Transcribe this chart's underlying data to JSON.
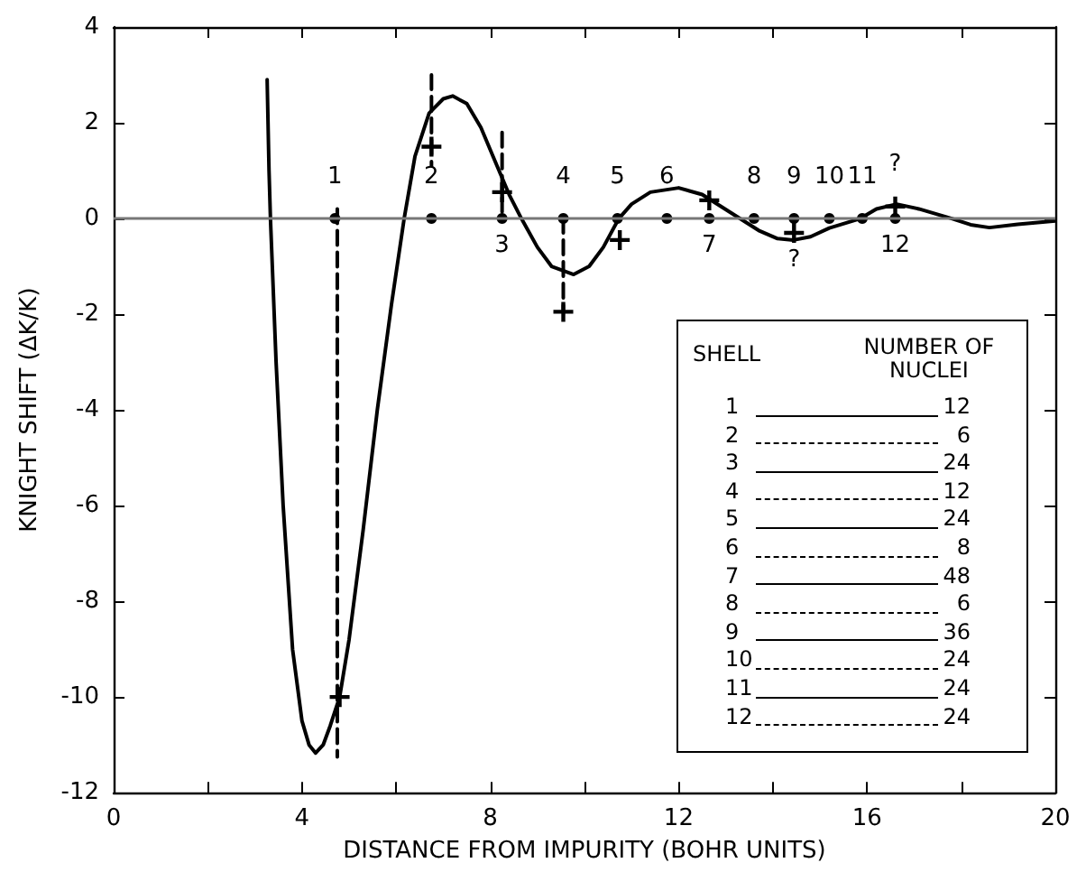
{
  "chart_data": [
    {
      "type": "line",
      "xlabel": "DISTANCE FROM IMPURITY (BOHR UNITS)",
      "ylabel": "KNIGHT SHIFT (ΔK/K)",
      "xlim": [
        0,
        20
      ],
      "ylim": [
        -12,
        4
      ],
      "xticks": [
        0,
        {
          "value": 2,
          "label": null
        },
        4,
        {
          "value": 6,
          "label": null
        },
        8,
        {
          "value": 10,
          "label": null
        },
        12,
        {
          "value": 14,
          "label": null
        },
        16,
        {
          "value": 18,
          "label": null
        },
        20
      ],
      "yticks": [
        -12,
        -10,
        -8,
        -6,
        -4,
        -2,
        0,
        2,
        4
      ],
      "ref_lines": [
        {
          "axis": "y",
          "value": 0,
          "color": "#777777"
        }
      ],
      "series": [
        {
          "type": "line",
          "color": "#000000",
          "marker": "none",
          "line_style": "solid",
          "x": [
            3.26,
            3.3,
            3.33,
            3.45,
            3.6,
            3.8,
            4.0,
            4.15,
            4.29,
            4.45,
            4.6,
            4.8,
            5.0,
            5.3,
            5.6,
            5.9,
            6.17,
            6.4,
            6.7,
            7.0,
            7.2,
            7.5,
            7.8,
            8.1,
            8.4,
            8.66,
            9.0,
            9.3,
            9.77,
            10.1,
            10.4,
            10.73,
            11.0,
            11.4,
            12.0,
            12.5,
            12.9,
            13.3,
            13.7,
            14.1,
            14.44,
            14.8,
            15.2,
            15.86,
            16.2,
            16.63,
            17.1,
            17.8,
            18.2,
            18.6,
            19.2,
            20
          ],
          "values": [
            2.9,
            1,
            0,
            -3,
            -6,
            -9,
            -10.5,
            -11,
            -11.17,
            -11,
            -10.6,
            -10,
            -8.8,
            -6.5,
            -4,
            -1.8,
            0,
            1.3,
            2.2,
            2.5,
            2.56,
            2.4,
            1.9,
            1.2,
            0.5,
            0,
            -0.6,
            -1,
            -1.17,
            -1,
            -0.6,
            0,
            0.3,
            0.55,
            0.64,
            0.5,
            0.25,
            0,
            -0.25,
            -0.42,
            -0.45,
            -0.38,
            -0.2,
            0,
            0.2,
            0.3,
            0.2,
            0,
            -0.13,
            -0.19,
            -0.12,
            -0.05
          ]
        },
        {
          "type": "line",
          "color": "#000000",
          "marker": "none",
          "line_style": "dashed",
          "x": [
            4.75,
            4.75
          ],
          "values": [
            0.2,
            -11.25
          ]
        },
        {
          "type": "line",
          "color": "#000000",
          "marker": "none",
          "line_style": "dashed",
          "x": [
            6.75,
            6.75
          ],
          "values": [
            3.0,
            1.1
          ]
        },
        {
          "type": "line",
          "color": "#000000",
          "marker": "none",
          "line_style": "dashed",
          "x": [
            8.25,
            8.25
          ],
          "values": [
            1.8,
            0
          ]
        },
        {
          "type": "line",
          "color": "#000000",
          "marker": "none",
          "line_style": "dashed",
          "x": [
            9.55,
            9.55
          ],
          "values": [
            0,
            -1.9
          ]
        },
        {
          "type": "scatter",
          "color": "#000000",
          "marker": "circle",
          "x": [
            4.7,
            6.75,
            8.25,
            9.55,
            10.7,
            11.75,
            12.65,
            13.6,
            14.45,
            15.2,
            15.9,
            16.6
          ],
          "values": [
            0,
            0,
            0,
            0,
            0,
            0,
            0,
            0,
            0,
            0,
            0,
            0
          ]
        },
        {
          "type": "scatter",
          "color": "#000000",
          "marker": "cross",
          "x": [
            4.8,
            6.75,
            8.25,
            9.55,
            10.75,
            12.65,
            14.45,
            16.6
          ],
          "values": [
            -10,
            1.5,
            0.55,
            -1.95,
            -0.45,
            0.38,
            -0.3,
            0.25
          ]
        }
      ],
      "annotations": [
        {
          "text": "1",
          "x": 4.7,
          "y": 0
        },
        {
          "text": "2",
          "x": 6.75,
          "y": 0
        },
        {
          "text": "3",
          "x": 8.25,
          "y": 0
        },
        {
          "text": "4",
          "x": 9.55,
          "y": 0
        },
        {
          "text": "5",
          "x": 10.7,
          "y": 0
        },
        {
          "text": "6",
          "x": 11.75,
          "y": 0
        },
        {
          "text": "7",
          "x": 12.65,
          "y": 0
        },
        {
          "text": "8",
          "x": 13.6,
          "y": 0
        },
        {
          "text": "9",
          "x": 14.45,
          "y": 0
        },
        {
          "text": "10",
          "x": 15.2,
          "y": 0
        },
        {
          "text": "11",
          "x": 15.9,
          "y": 0
        },
        {
          "text": "12",
          "x": 16.6,
          "y": 0
        },
        {
          "text": "?",
          "x": 14.45,
          "y": -0.3
        },
        {
          "text": "?",
          "x": 16.6,
          "y": 0.25
        }
      ]
    },
    {
      "type": "other",
      "xlabel": "SHELL",
      "ylabel": "NUMBER OF NUCLEI",
      "annotations": [
        "1 12",
        "2 6",
        "3 24",
        "4 12",
        "5 24",
        "6 8",
        "7 48",
        "8 6",
        "9 36",
        "10 24",
        "11 24",
        "12 24"
      ]
    }
  ]
}
